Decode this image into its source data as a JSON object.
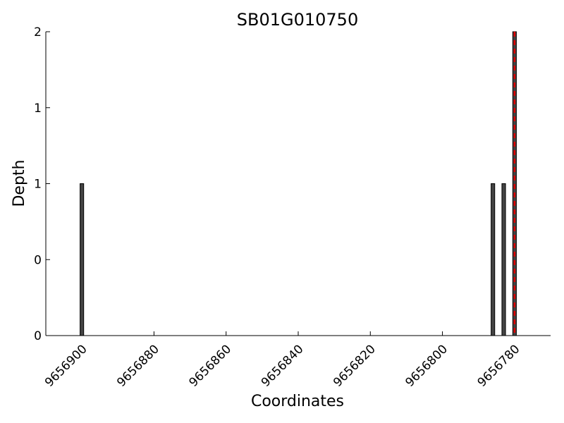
{
  "chart_data": {
    "type": "bar",
    "title": "SB01G010750",
    "xlabel": "Coordinates",
    "ylabel": "Depth",
    "x": [
      9656900,
      9656786,
      9656783,
      9656780
    ],
    "values": [
      1,
      1,
      1,
      2
    ],
    "color": "#444444",
    "xlim": [
      9656910,
      9656770
    ],
    "xticks": [
      9656900,
      9656880,
      9656860,
      9656840,
      9656820,
      9656800,
      9656780
    ],
    "ylim": [
      0,
      2
    ],
    "yticks": [
      {
        "value": 0,
        "label": "0"
      },
      {
        "value": 0.5,
        "label": "0"
      },
      {
        "value": 1,
        "label": "1"
      },
      {
        "value": 1.5,
        "label": "1"
      },
      {
        "value": 2,
        "label": "2"
      }
    ],
    "vline": {
      "x": 9656780,
      "color": "#e00000"
    },
    "grid": false
  }
}
